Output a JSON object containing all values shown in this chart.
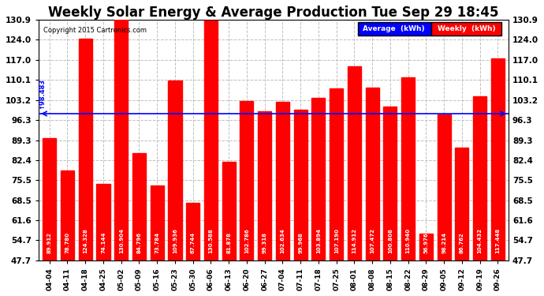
{
  "title": "Weekly Solar Energy & Average Production Tue Sep 29 18:45",
  "copyright": "Copyright 2015 Cartronics.com",
  "categories": [
    "04-04",
    "04-11",
    "04-18",
    "04-25",
    "05-02",
    "05-09",
    "05-16",
    "05-23",
    "05-30",
    "06-06",
    "06-13",
    "06-20",
    "06-27",
    "07-04",
    "07-11",
    "07-18",
    "07-25",
    "08-01",
    "08-08",
    "08-15",
    "08-22",
    "08-29",
    "09-05",
    "09-12",
    "09-19",
    "09-26"
  ],
  "values": [
    89.912,
    78.78,
    124.328,
    74.144,
    130.904,
    84.796,
    73.784,
    109.936,
    67.744,
    130.588,
    81.878,
    102.786,
    99.318,
    102.634,
    99.968,
    103.894,
    107.19,
    114.912,
    107.472,
    100.808,
    110.94,
    56.976,
    98.214,
    86.762,
    104.432,
    117.448
  ],
  "average": 98.483,
  "bar_color": "#ff0000",
  "average_line_color": "#0000ff",
  "background_color": "#ffffff",
  "plot_bg_color": "#ffffff",
  "grid_color": "#c0c0c0",
  "ylim_min": 47.7,
  "ylim_max": 130.9,
  "yticks": [
    47.7,
    54.7,
    61.6,
    68.5,
    75.5,
    82.4,
    89.3,
    96.3,
    103.2,
    110.1,
    117.0,
    124.0,
    130.9
  ],
  "legend_average_color": "#0000ff",
  "legend_weekly_color": "#ff0000",
  "title_fontsize": 12,
  "bar_width": 0.75,
  "value_fontsize": 5.0,
  "xlabel_fontsize": 6.5,
  "ylabel_fontsize": 7.5
}
